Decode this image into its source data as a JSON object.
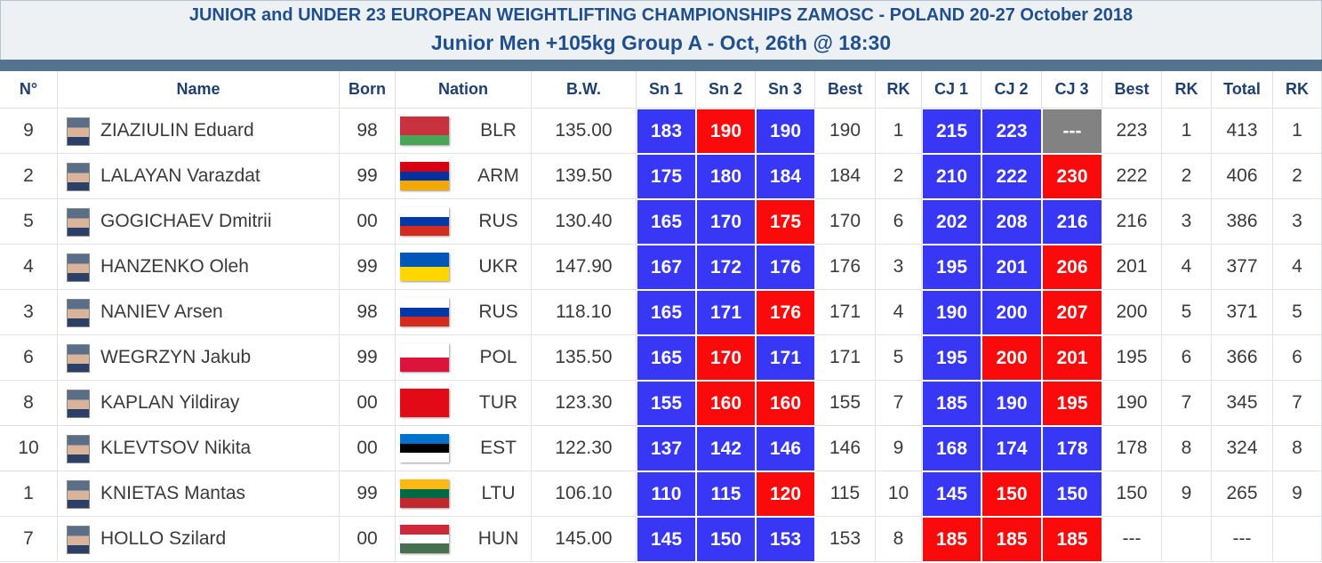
{
  "header": {
    "title": "JUNIOR and UNDER 23 EUROPEAN WEIGHTLIFTING CHAMPIONSHIPS ZAMOSC - POLAND 20-27 October 2018",
    "subtitle": "Junior Men +105kg Group A - Oct, 26th @ 18:30"
  },
  "table": {
    "columns": [
      "N°",
      "Name",
      "Born",
      "Nation",
      "B.W.",
      "Sn 1",
      "Sn 2",
      "Sn 3",
      "Best",
      "RK",
      "CJ 1",
      "CJ 2",
      "CJ 3",
      "Best",
      "RK",
      "Total",
      "RK"
    ],
    "rows": [
      {
        "cells": [
          "9",
          "ZIAZIULIN Eduard",
          "98",
          "BLR",
          "135.00",
          "183",
          "190",
          "190",
          "190",
          "1",
          "215",
          "223",
          "---",
          "223",
          "1",
          "413",
          "1"
        ],
        "colors": [
          "#3737f5",
          "#fa0a0a",
          "#3737f5",
          "#3737f5",
          "#3737f5",
          "#828282"
        ],
        "flag": [
          "#c8313e",
          "#c8313e",
          "#4aa657"
        ]
      },
      {
        "cells": [
          "2",
          "LALAYAN Varazdat",
          "99",
          "ARM",
          "139.50",
          "175",
          "180",
          "184",
          "184",
          "2",
          "210",
          "222",
          "230",
          "222",
          "2",
          "406",
          "2"
        ],
        "colors": [
          "#3737f5",
          "#3737f5",
          "#3737f5",
          "#3737f5",
          "#3737f5",
          "#fa0a0a"
        ],
        "flag": [
          "#d90012",
          "#0033a0",
          "#f2a800"
        ]
      },
      {
        "cells": [
          "5",
          "GOGICHAEV Dmitrii",
          "00",
          "RUS",
          "130.40",
          "165",
          "170",
          "175",
          "170",
          "6",
          "202",
          "208",
          "216",
          "216",
          "3",
          "386",
          "3"
        ],
        "colors": [
          "#3737f5",
          "#3737f5",
          "#fa0a0a",
          "#3737f5",
          "#3737f5",
          "#3737f5"
        ],
        "flag": [
          "#ffffff",
          "#0039a6",
          "#d52b1e"
        ]
      },
      {
        "cells": [
          "4",
          "HANZENKO Oleh",
          "99",
          "UKR",
          "147.90",
          "167",
          "172",
          "176",
          "176",
          "3",
          "195",
          "201",
          "206",
          "201",
          "4",
          "377",
          "4"
        ],
        "colors": [
          "#3737f5",
          "#3737f5",
          "#3737f5",
          "#3737f5",
          "#3737f5",
          "#fa0a0a"
        ],
        "flag": [
          "#0057b7",
          "#ffd700"
        ]
      },
      {
        "cells": [
          "3",
          "NANIEV Arsen",
          "98",
          "RUS",
          "118.10",
          "165",
          "171",
          "176",
          "171",
          "4",
          "190",
          "200",
          "207",
          "200",
          "5",
          "371",
          "5"
        ],
        "colors": [
          "#3737f5",
          "#3737f5",
          "#fa0a0a",
          "#3737f5",
          "#3737f5",
          "#fa0a0a"
        ],
        "flag": [
          "#ffffff",
          "#0039a6",
          "#d52b1e"
        ]
      },
      {
        "cells": [
          "6",
          "WEGRZYN Jakub",
          "99",
          "POL",
          "135.50",
          "165",
          "170",
          "171",
          "171",
          "5",
          "195",
          "200",
          "201",
          "195",
          "6",
          "366",
          "6"
        ],
        "colors": [
          "#3737f5",
          "#fa0a0a",
          "#3737f5",
          "#3737f5",
          "#fa0a0a",
          "#fa0a0a"
        ],
        "flag": [
          "#ffffff",
          "#dc143c"
        ]
      },
      {
        "cells": [
          "8",
          "KAPLAN Yildiray",
          "00",
          "TUR",
          "123.30",
          "155",
          "160",
          "160",
          "155",
          "7",
          "185",
          "190",
          "195",
          "190",
          "7",
          "345",
          "7"
        ],
        "colors": [
          "#3737f5",
          "#fa0a0a",
          "#fa0a0a",
          "#3737f5",
          "#3737f5",
          "#fa0a0a"
        ],
        "flag": [
          "#e30a17"
        ]
      },
      {
        "cells": [
          "10",
          "KLEVTSOV Nikita",
          "00",
          "EST",
          "122.30",
          "137",
          "142",
          "146",
          "146",
          "9",
          "168",
          "174",
          "178",
          "178",
          "8",
          "324",
          "8"
        ],
        "colors": [
          "#3737f5",
          "#3737f5",
          "#3737f5",
          "#3737f5",
          "#3737f5",
          "#3737f5"
        ],
        "flag": [
          "#0072ce",
          "#000000",
          "#ffffff"
        ]
      },
      {
        "cells": [
          "1",
          "KNIETAS Mantas",
          "99",
          "LTU",
          "106.10",
          "110",
          "115",
          "120",
          "115",
          "10",
          "145",
          "150",
          "150",
          "150",
          "9",
          "265",
          "9"
        ],
        "colors": [
          "#3737f5",
          "#3737f5",
          "#fa0a0a",
          "#3737f5",
          "#fa0a0a",
          "#3737f5"
        ],
        "flag": [
          "#fdb913",
          "#006a44",
          "#c1272d"
        ]
      },
      {
        "cells": [
          "7",
          "HOLLO Szilard",
          "00",
          "HUN",
          "145.00",
          "145",
          "150",
          "153",
          "153",
          "8",
          "185",
          "185",
          "185",
          "---",
          null,
          "---",
          null
        ],
        "colors": [
          "#3737f5",
          "#3737f5",
          "#3737f5",
          "#fa0a0a",
          "#fa0a0a",
          "#fa0a0a"
        ],
        "flag": [
          "#ce2939",
          "#ffffff",
          "#477050"
        ]
      }
    ]
  }
}
